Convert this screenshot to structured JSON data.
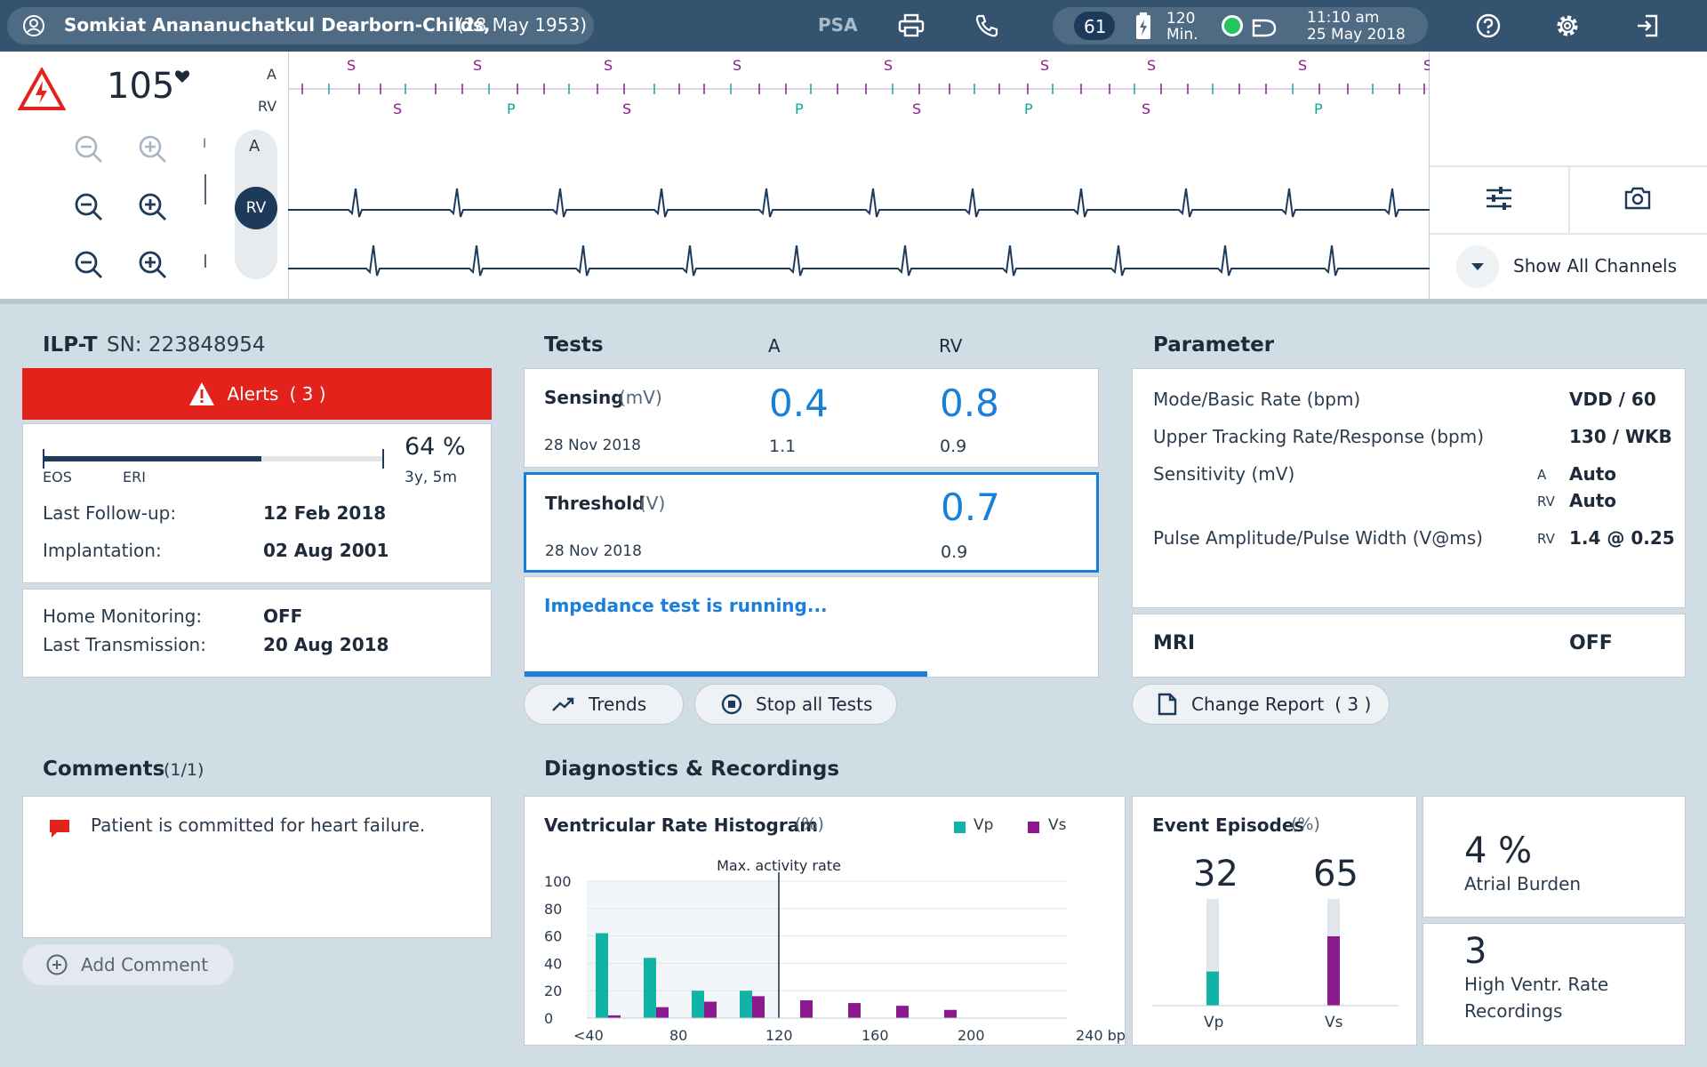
{
  "topbar": {
    "patient_name": "Somkiat Anananuchatkul Dearborn-Childs,",
    "patient_dob": "(28 May 1953)",
    "psa_label": "PSA",
    "rate": "61",
    "battery_value": "120",
    "battery_unit": "Min.",
    "time": "11:10 am",
    "date": "25 May 2018",
    "icons": [
      "user-icon",
      "printer-icon",
      "phone-icon",
      "battery-icon",
      "status-dot-icon",
      "connection-icon",
      "help-icon",
      "settings-icon",
      "logout-icon"
    ]
  },
  "ecg": {
    "heart_rate": "105",
    "row_labels": [
      "A",
      "RV"
    ],
    "channel_a": "A",
    "channel_rv": "RV",
    "marker_label": "I",
    "markers_top": [
      "S",
      "S",
      "S",
      "S",
      "S",
      "S",
      "S",
      "S",
      "S"
    ],
    "markers_bottom": [
      "S",
      "P",
      "S",
      "P",
      "S",
      "P",
      "S",
      "P"
    ],
    "show_all_channels": "Show All Channels"
  },
  "device": {
    "title": "ILP-T",
    "sn": "SN: 223848954",
    "alerts_label": "Alerts",
    "alerts_count": "( 3 )",
    "battery_percent": "64 %",
    "battery_remaining": "3y, 5m",
    "battery_level": 0.64,
    "eos": "EOS",
    "eri": "ERI",
    "last_followup_label": "Last Follow-up:",
    "last_followup": "12 Feb 2018",
    "implantation_label": "Implantation:",
    "implantation": "02 Aug 2001",
    "home_monitoring_label": "Home Monitoring:",
    "home_monitoring": "OFF",
    "last_transmission_label": "Last Transmission:",
    "last_transmission": "20 Aug 2018"
  },
  "tests": {
    "title": "Tests",
    "col_a": "A",
    "col_rv": "RV",
    "sensing_label": "Sensing",
    "sensing_unit": "(mV)",
    "sensing_a": "0.4",
    "sensing_rv": "0.8",
    "sensing_date": "28 Nov 2018",
    "sensing_prev_a": "1.1",
    "sensing_prev_rv": "0.9",
    "threshold_label": "Threshold",
    "threshold_unit": "(V)",
    "threshold_rv": "0.7",
    "threshold_date": "28 Nov 2018",
    "threshold_prev_rv": "0.9",
    "impedance_status": "Impedance test is running...",
    "impedance_progress": 0.7,
    "trends_label": "Trends",
    "stop_label": "Stop all Tests"
  },
  "parameter": {
    "title": "Parameter",
    "mode_label": "Mode/Basic Rate (bpm)",
    "mode_value": "VDD / 60",
    "utr_label": "Upper Tracking Rate/Response (bpm)",
    "utr_value": "130 / WKB",
    "sensitivity_label": "Sensitivity (mV)",
    "sens_a_tag": "A",
    "sens_a_value": "Auto",
    "sens_rv_tag": "RV",
    "sens_rv_value": "Auto",
    "pulse_label": "Pulse Amplitude/Pulse Width (V@ms)",
    "pulse_tag": "RV",
    "pulse_value": "1.4 @ 0.25",
    "mri_label": "MRI",
    "mri_value": "OFF",
    "change_report_label": "Change Report",
    "change_report_count": "( 3 )"
  },
  "comments": {
    "title": "Comments",
    "count": "(1/1)",
    "text": "Patient is committed for heart failure.",
    "add_label": "Add Comment"
  },
  "diagnostics": {
    "title": "Diagnostics & Recordings",
    "histogram_title": "Ventricular Rate Histogram",
    "histogram_unit": "(%)",
    "legend_vp": "Vp",
    "legend_vs": "Vs",
    "max_activity_label": "Max. activity rate",
    "events_title": "Event Episodes",
    "events_unit": "(%)",
    "vp_value": "32",
    "vs_value": "65",
    "vp_label": "Vp",
    "vs_label": "Vs",
    "atrial_value": "4 %",
    "atrial_label": "Atrial Burden",
    "hvr_value": "3",
    "hvr_label_1": "High Ventr. Rate",
    "hvr_label_2": "Recordings"
  },
  "colors": {
    "topbar": "#34536f",
    "alert": "#e3231b",
    "accent_blue": "#1a7fd9",
    "vp": "#11b3a6",
    "vs": "#8a1a8e",
    "dark": "#1e3a5a"
  },
  "chart_data": {
    "type": "bar",
    "categories": [
      "<40",
      "40-60",
      "60-80",
      "80-100",
      "100-120",
      "120-140",
      "140-160",
      "160-180",
      "180-200",
      "200-240"
    ],
    "x_tick_labels": [
      "<40",
      "80",
      "120",
      "160",
      "200",
      "240 bpm"
    ],
    "series": [
      {
        "name": "Vp",
        "values": [
          62,
          44,
          20,
          20,
          0,
          0,
          0,
          0,
          0,
          0
        ]
      },
      {
        "name": "Vs",
        "values": [
          2,
          8,
          12,
          16,
          13,
          11,
          9,
          6,
          0,
          0
        ]
      }
    ],
    "ylim": [
      0,
      100
    ],
    "y_ticks": [
      "100",
      "80",
      "60",
      "40",
      "20",
      "0"
    ],
    "max_activity_at": 120,
    "grid": true,
    "legend": "top-right"
  },
  "event_chart": {
    "type": "bar",
    "categories": [
      "Vp",
      "Vs"
    ],
    "values": [
      32,
      65
    ],
    "ylim": [
      0,
      100
    ]
  }
}
